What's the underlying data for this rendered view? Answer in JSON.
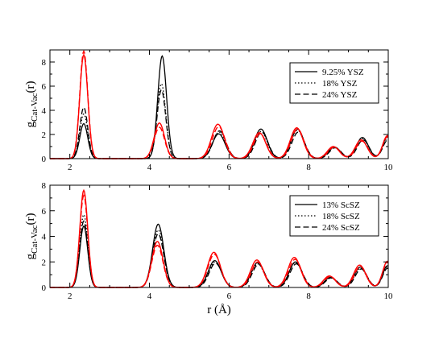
{
  "chart_data": [
    {
      "type": "line",
      "xlabel": "",
      "ylabel_main": "g",
      "ylabel_sub": "Cat-Vac",
      "ylabel_tail": "(r)",
      "xlim": [
        1.5,
        10
      ],
      "ylim": [
        0,
        9
      ],
      "xticks": [
        2,
        4,
        6,
        8,
        10
      ],
      "yticks": [
        0,
        2,
        4,
        6,
        8
      ],
      "legend_position": "top-right",
      "legend": [
        {
          "label": "9.25% YSZ",
          "style": "solid"
        },
        {
          "label": "18% YSZ",
          "style": "dotted"
        },
        {
          "label": "24% YSZ",
          "style": "dashed"
        }
      ],
      "series": [
        {
          "name": "9.25% YSZ",
          "color": "#000000",
          "style": "solid",
          "peaks": [
            [
              2.35,
              2.9,
              0.1
            ],
            [
              4.32,
              8.5,
              0.11
            ],
            [
              5.74,
              2.05,
              0.16
            ],
            [
              6.8,
              2.45,
              0.16
            ],
            [
              7.72,
              2.45,
              0.16
            ],
            [
              8.65,
              0.95,
              0.15
            ],
            [
              9.35,
              1.75,
              0.15
            ],
            [
              9.98,
              1.8,
              0.12
            ]
          ]
        },
        {
          "name": "18% YSZ",
          "color": "#000000",
          "style": "dotted",
          "peaks": [
            [
              2.35,
              3.7,
              0.1
            ],
            [
              4.3,
              6.2,
              0.11
            ],
            [
              5.75,
              2.2,
              0.16
            ],
            [
              6.8,
              2.25,
              0.16
            ],
            [
              7.72,
              2.35,
              0.16
            ],
            [
              8.65,
              0.95,
              0.15
            ],
            [
              9.35,
              1.65,
              0.15
            ],
            [
              9.98,
              1.6,
              0.12
            ]
          ]
        },
        {
          "name": "24% YSZ",
          "color": "#000000",
          "style": "dashed",
          "peaks": [
            [
              2.35,
              4.25,
              0.1
            ],
            [
              4.3,
              5.7,
              0.11
            ],
            [
              5.76,
              2.3,
              0.16
            ],
            [
              6.82,
              2.2,
              0.16
            ],
            [
              7.74,
              2.2,
              0.16
            ],
            [
              8.67,
              0.9,
              0.15
            ],
            [
              9.37,
              1.55,
              0.15
            ],
            [
              9.98,
              1.5,
              0.12
            ]
          ]
        },
        {
          "name": "",
          "color": "#ff0000",
          "style": "solid",
          "peaks": [
            [
              2.35,
              8.6,
              0.1
            ],
            [
              4.25,
              2.95,
              0.13
            ],
            [
              5.72,
              2.85,
              0.16
            ],
            [
              6.76,
              2.15,
              0.16
            ],
            [
              7.7,
              2.55,
              0.16
            ],
            [
              8.62,
              1.0,
              0.15
            ],
            [
              9.32,
              1.55,
              0.15
            ],
            [
              9.98,
              1.9,
              0.12
            ]
          ]
        },
        {
          "name": "",
          "color": "#ff0000",
          "style": "dashed",
          "peaks": [
            [
              2.35,
              8.9,
              0.1
            ],
            [
              4.25,
              2.6,
              0.13
            ],
            [
              5.74,
              2.65,
              0.16
            ],
            [
              6.78,
              2.05,
              0.16
            ],
            [
              7.72,
              2.45,
              0.16
            ],
            [
              8.64,
              0.95,
              0.15
            ],
            [
              9.34,
              1.45,
              0.15
            ],
            [
              9.98,
              1.8,
              0.12
            ]
          ]
        }
      ]
    },
    {
      "type": "line",
      "xlabel": "r (Å)",
      "ylabel_main": "g",
      "ylabel_sub": "Cat-Vac",
      "ylabel_tail": "(r)",
      "xlim": [
        1.5,
        10
      ],
      "ylim": [
        0,
        8
      ],
      "xticks": [
        2,
        4,
        6,
        8,
        10
      ],
      "yticks": [
        0,
        2,
        4,
        6,
        8
      ],
      "legend_position": "top-right",
      "legend": [
        {
          "label": "13% ScSZ",
          "style": "solid"
        },
        {
          "label": "18% ScSZ",
          "style": "dotted"
        },
        {
          "label": "24% ScSZ",
          "style": "dashed"
        }
      ],
      "series": [
        {
          "name": "13% ScSZ",
          "color": "#000000",
          "style": "solid",
          "peaks": [
            [
              2.35,
              4.8,
              0.1
            ],
            [
              4.22,
              4.95,
              0.14
            ],
            [
              5.64,
              2.1,
              0.16
            ],
            [
              6.72,
              1.95,
              0.16
            ],
            [
              7.67,
              2.0,
              0.16
            ],
            [
              8.55,
              0.8,
              0.15
            ],
            [
              9.3,
              1.6,
              0.15
            ],
            [
              9.98,
              1.7,
              0.12
            ]
          ]
        },
        {
          "name": "18% ScSZ",
          "color": "#000000",
          "style": "dotted",
          "peaks": [
            [
              2.35,
              5.7,
              0.1
            ],
            [
              4.22,
              4.5,
              0.14
            ],
            [
              5.65,
              2.0,
              0.16
            ],
            [
              6.72,
              1.85,
              0.16
            ],
            [
              7.67,
              1.95,
              0.16
            ],
            [
              8.55,
              0.75,
              0.15
            ],
            [
              9.3,
              1.5,
              0.15
            ],
            [
              9.98,
              1.6,
              0.12
            ]
          ]
        },
        {
          "name": "24% ScSZ",
          "color": "#000000",
          "style": "dashed",
          "peaks": [
            [
              2.35,
              5.2,
              0.1
            ],
            [
              4.22,
              4.2,
              0.14
            ],
            [
              5.66,
              1.9,
              0.16
            ],
            [
              6.74,
              1.8,
              0.16
            ],
            [
              7.69,
              1.85,
              0.16
            ],
            [
              8.57,
              0.75,
              0.15
            ],
            [
              9.32,
              1.45,
              0.15
            ],
            [
              9.98,
              1.5,
              0.12
            ]
          ]
        },
        {
          "name": "",
          "color": "#ff0000",
          "style": "solid",
          "peaks": [
            [
              2.35,
              7.6,
              0.1
            ],
            [
              4.2,
              3.6,
              0.14
            ],
            [
              5.62,
              2.75,
              0.16
            ],
            [
              6.7,
              2.15,
              0.16
            ],
            [
              7.64,
              2.35,
              0.16
            ],
            [
              8.52,
              0.9,
              0.15
            ],
            [
              9.28,
              1.75,
              0.15
            ],
            [
              9.98,
              2.05,
              0.12
            ]
          ]
        },
        {
          "name": "",
          "color": "#ff0000",
          "style": "dashed",
          "peaks": [
            [
              2.35,
              7.2,
              0.1
            ],
            [
              4.2,
              3.3,
              0.14
            ],
            [
              5.63,
              2.6,
              0.16
            ],
            [
              6.72,
              2.0,
              0.16
            ],
            [
              7.66,
              2.2,
              0.16
            ],
            [
              8.54,
              0.85,
              0.15
            ],
            [
              9.3,
              1.65,
              0.15
            ],
            [
              9.98,
              1.95,
              0.12
            ]
          ]
        }
      ]
    }
  ]
}
